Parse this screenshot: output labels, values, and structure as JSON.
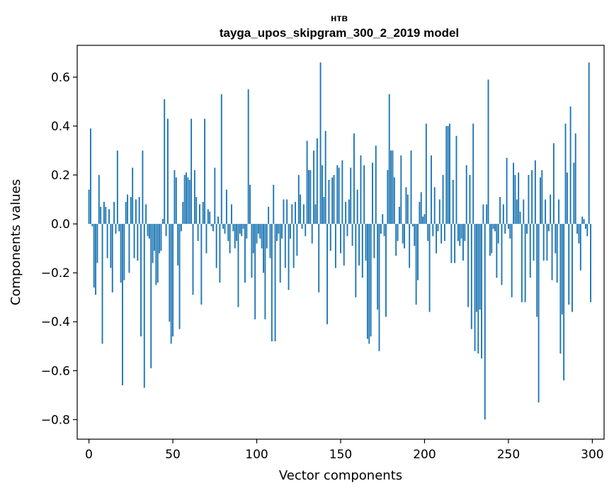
{
  "chart_data": {
    "type": "bar",
    "title": "нтв",
    "subtitle": "tayga_upos_skipgram_300_2_2019 model",
    "xlabel": "Vector components",
    "ylabel": "Components values",
    "xlim": [
      -7,
      307
    ],
    "ylim": [
      -0.88,
      0.73
    ],
    "x_ticks": [
      0,
      50,
      100,
      150,
      200,
      250,
      300
    ],
    "x_tick_labels": [
      "0",
      "50",
      "100",
      "150",
      "200",
      "250",
      "300"
    ],
    "y_ticks": [
      -0.8,
      -0.6,
      -0.4,
      -0.2,
      0.0,
      0.2,
      0.4,
      0.6
    ],
    "y_tick_labels": [
      "−0.8",
      "−0.6",
      "−0.4",
      "−0.2",
      "0.0",
      "0.2",
      "0.4",
      "0.6"
    ],
    "bar_color": "#1f77b4",
    "values": [
      0.14,
      0.39,
      -0.01,
      -0.26,
      -0.29,
      -0.16,
      0.2,
      0.07,
      -0.49,
      0.09,
      0.07,
      -0.14,
      0.06,
      -0.18,
      -0.28,
      0.09,
      -0.04,
      0.3,
      -0.03,
      -0.24,
      -0.66,
      -0.23,
      0.09,
      0.12,
      -0.2,
      0.11,
      0.23,
      -0.14,
      0.1,
      -0.15,
      0.11,
      -0.46,
      0.3,
      -0.67,
      0.08,
      -0.05,
      -0.06,
      -0.59,
      -0.16,
      -0.11,
      -0.25,
      -0.24,
      -0.12,
      -0.11,
      0.02,
      0.51,
      -0.05,
      0.43,
      -0.4,
      -0.49,
      -0.46,
      0.22,
      0.19,
      -0.17,
      -0.43,
      -0.03,
      0.09,
      0.2,
      0.21,
      0.19,
      0.18,
      0.43,
      -0.29,
      0.22,
      0.11,
      -0.07,
      0.08,
      -0.33,
      0.09,
      0.43,
      -0.12,
      0.06,
      0.05,
      -0.01,
      -0.03,
      0.23,
      -0.18,
      0.03,
      -0.24,
      0.53,
      -0.02,
      -0.04,
      0.14,
      -0.07,
      -0.12,
      0.08,
      -0.03,
      -0.1,
      -0.07,
      -0.34,
      -0.04,
      -0.05,
      -0.02,
      -0.24,
      -0.06,
      0.55,
      0.16,
      -0.22,
      -0.12,
      -0.39,
      -0.08,
      -0.04,
      -0.06,
      -0.1,
      -0.2,
      -0.39,
      -0.1,
      0.07,
      -0.14,
      -0.48,
      0.16,
      -0.48,
      -0.07,
      -0.04,
      -0.24,
      -0.06,
      0.1,
      -0.18,
      0.1,
      -0.27,
      -0.06,
      0.08,
      -0.18,
      0.09,
      -0.13,
      0.2,
      0.12,
      -0.02,
      0.08,
      -0.05,
      0.34,
      0.22,
      0.22,
      -0.08,
      0.3,
      0.08,
      0.35,
      -0.28,
      0.66,
      0.24,
      0.11,
      0.38,
      -0.41,
      0.18,
      -0.11,
      0.19,
      0.2,
      -0.18,
      0.24,
      0.23,
      -0.12,
      0.26,
      -0.17,
      0.09,
      -0.05,
      0.1,
      0.23,
      -0.09,
      0.37,
      -0.3,
      0.14,
      -0.17,
      0.28,
      -0.22,
      0.24,
      -0.15,
      -0.47,
      -0.49,
      -0.46,
      0.25,
      -0.14,
      0.32,
      -0.35,
      -0.52,
      -0.04,
      0.04,
      -0.05,
      -0.38,
      0.22,
      0.53,
      0.3,
      0.3,
      0.19,
      -0.13,
      -0.07,
      0.07,
      0.28,
      -0.08,
      -0.1,
      0.15,
      0.12,
      -0.18,
      0.3,
      -0.01,
      -0.09,
      -0.33,
      -0.23,
      0.09,
      0.13,
      0.03,
      0.04,
      0.41,
      -0.07,
      -0.36,
      0.28,
      -0.05,
      0.15,
      -0.12,
      -0.03,
      0.1,
      -0.08,
      0.2,
      -0.07,
      0.4,
      0.4,
      0.41,
      -0.16,
      0.18,
      -0.16,
      0.36,
      -0.07,
      -0.09,
      -0.06,
      -0.15,
      -0.07,
      0.24,
      -0.34,
      0.2,
      -0.43,
      0.41,
      -0.52,
      -0.36,
      -0.53,
      -0.35,
      -0.55,
      0.08,
      -0.8,
      0.08,
      0.59,
      -0.13,
      -0.12,
      -0.02,
      -0.03,
      -0.22,
      -0.08,
      0.11,
      -0.25,
      0.08,
      -0.04,
      0.27,
      -0.02,
      -0.06,
      -0.3,
      0.25,
      0.2,
      0.1,
      0.21,
      0.05,
      -0.32,
      0.1,
      -0.32,
      -0.04,
      0.2,
      -0.22,
      0.22,
      -0.15,
      0.26,
      -0.38,
      -0.73,
      0.19,
      0.22,
      -0.15,
      0.1,
      -0.15,
      -0.03,
      0.12,
      -0.23,
      0.33,
      -0.12,
      -0.24,
      0.1,
      -0.53,
      -0.37,
      -0.64,
      0.41,
      0.21,
      -0.33,
      0.48,
      -0.36,
      0.25,
      0.37,
      -0.04,
      -0.08,
      -0.19,
      0.03,
      0.02,
      -0.02,
      -0.05,
      0.66,
      -0.32
    ]
  }
}
